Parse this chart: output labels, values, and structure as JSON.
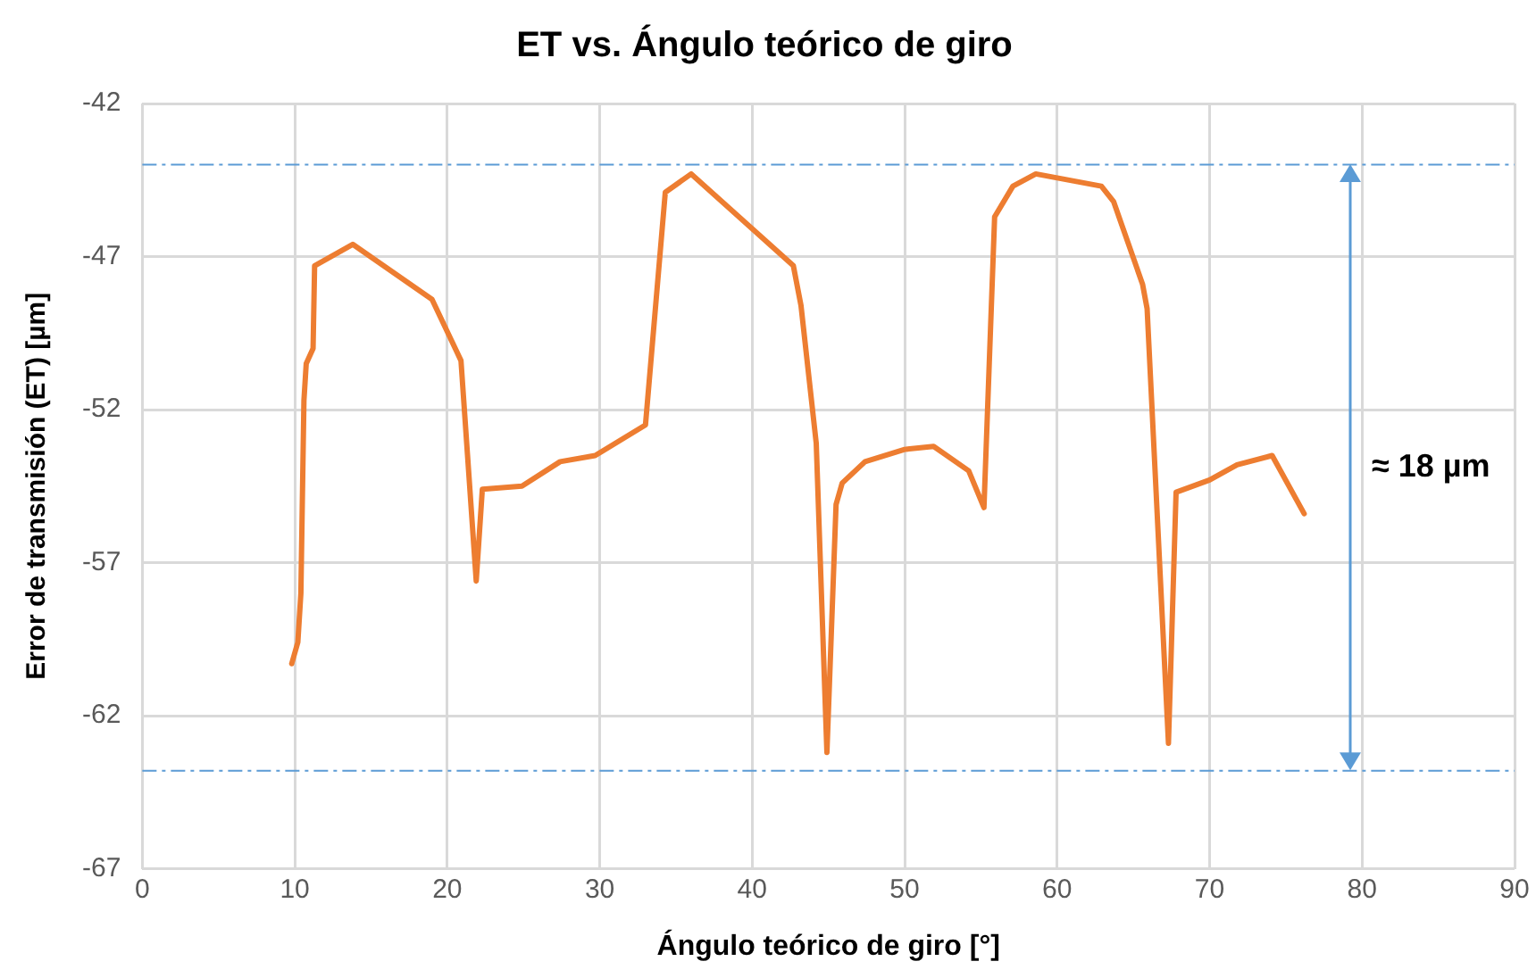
{
  "chart_data": {
    "type": "line",
    "title": "ET vs. Ángulo teórico de giro",
    "xlabel": "Ángulo teórico de giro [°]",
    "ylabel": "Error de transmisión (ET) [µm]",
    "xlim": [
      0,
      90
    ],
    "xticks": [
      0,
      10,
      20,
      30,
      40,
      50,
      60,
      70,
      80,
      90
    ],
    "ylim": [
      -67,
      -42
    ],
    "yticks": [
      -67,
      -62,
      -57,
      -52,
      -47,
      -42
    ],
    "grid": true,
    "legend": false,
    "marker": "none",
    "line_style": "solid",
    "series": [
      {
        "color": "#ed7d31",
        "x": [
          9.8,
          10.2,
          10.4,
          10.6,
          10.75,
          11.2,
          11.3,
          13.8,
          19.0,
          20.9,
          21.9,
          22.3,
          24.9,
          27.4,
          29.7,
          33.0,
          34.3,
          36.0,
          42.7,
          43.2,
          44.2,
          44.9,
          45.5,
          45.9,
          47.4,
          50.0,
          51.9,
          54.2,
          55.2,
          55.9,
          57.1,
          58.6,
          62.9,
          63.7,
          65.6,
          65.9,
          67.3,
          67.8,
          70.0,
          71.8,
          74.1,
          76.2
        ],
        "values": [
          -60.3,
          -59.6,
          -58.0,
          -51.7,
          -50.5,
          -50.0,
          -47.3,
          -46.6,
          -48.4,
          -50.4,
          -57.6,
          -54.6,
          -54.5,
          -53.7,
          -53.5,
          -52.5,
          -44.9,
          -44.3,
          -47.3,
          -48.6,
          -53.1,
          -63.2,
          -55.1,
          -54.4,
          -53.7,
          -53.3,
          -53.2,
          -54.0,
          -55.2,
          -45.7,
          -44.7,
          -44.3,
          -44.7,
          -45.2,
          -47.9,
          -48.7,
          -62.9,
          -54.7,
          -54.3,
          -53.8,
          -53.5,
          -55.4
        ]
      }
    ],
    "ref_lines": [
      {
        "axis": "y",
        "value": -44,
        "color": "#5b9bd5",
        "line_style": "dashed"
      },
      {
        "axis": "y",
        "value": -63.8,
        "color": "#5b9bd5",
        "line_style": "dashed"
      }
    ],
    "annotations": [
      "≈ 18 µm"
    ]
  }
}
